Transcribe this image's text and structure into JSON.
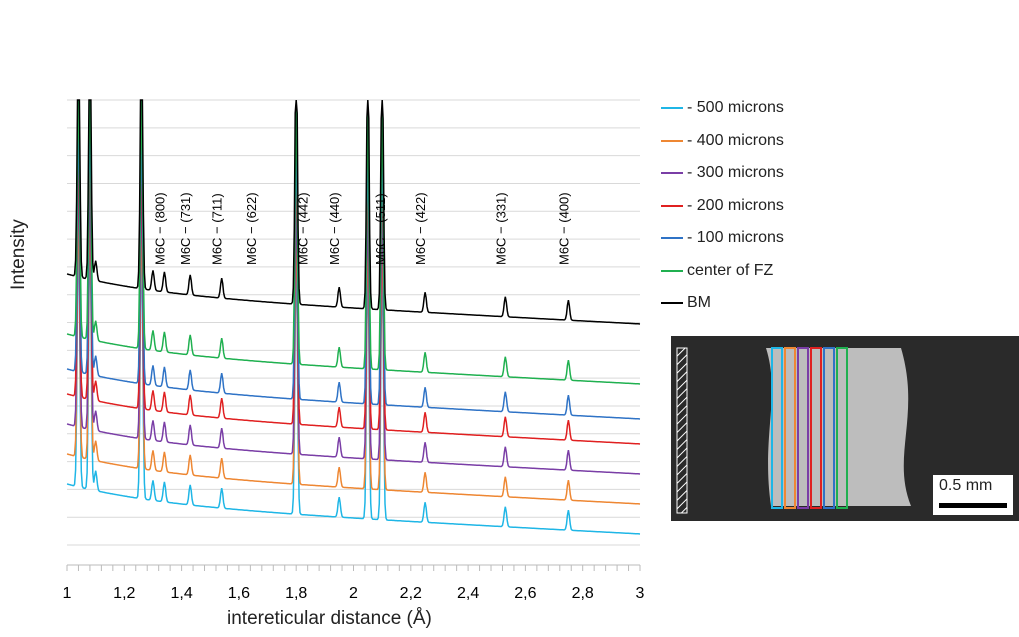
{
  "chart_data": {
    "type": "line",
    "title": "",
    "xlabel": "intereticular distance (Å)",
    "ylabel": "Intensity",
    "xlim": [
      1,
      3
    ],
    "x_ticks": [
      "1",
      "1,2",
      "1,4",
      "1,6",
      "1,8",
      "2",
      "2,2",
      "2,4",
      "2,6",
      "2,8",
      "3"
    ],
    "grid": true,
    "legend_position": "right",
    "series": [
      {
        "name": "- 500 microns",
        "color": "#1fb6e6"
      },
      {
        "name": "- 400 microns",
        "color": "#ee8733"
      },
      {
        "name": "- 300 microns",
        "color": "#7a3ea6"
      },
      {
        "name": "- 200 microns",
        "color": "#e02020"
      },
      {
        "name": "- 100 microns",
        "color": "#2f73c6"
      },
      {
        "name": "center of FZ",
        "color": "#20b050"
      },
      {
        "name": "BM",
        "color": "#000000"
      }
    ],
    "annotations": [
      {
        "text": "M6C − (800)",
        "x": 1.34
      },
      {
        "text": "M6C − (731)",
        "x": 1.43
      },
      {
        "text": "M6C − (711)",
        "x": 1.54
      },
      {
        "text": "M6C − (622)",
        "x": 1.66
      },
      {
        "text": "M6C − (442)",
        "x": 1.84
      },
      {
        "text": "M6C − (440)",
        "x": 1.95
      },
      {
        "text": "M6C − (511)",
        "x": 2.11
      },
      {
        "text": "M6C − (422)",
        "x": 2.25
      },
      {
        "text": "M6C − (331)",
        "x": 2.53
      },
      {
        "text": "M6C − (400)",
        "x": 2.75
      }
    ]
  },
  "legend": {
    "items": [
      {
        "label": "- 500 microns",
        "color": "#1fb6e6"
      },
      {
        "label": "- 400 microns",
        "color": "#ee8733"
      },
      {
        "label": "- 300 microns",
        "color": "#7a3ea6"
      },
      {
        "label": "- 200 microns",
        "color": "#e02020"
      },
      {
        "label": "- 100 microns",
        "color": "#2f73c6"
      },
      {
        "label": "center of FZ",
        "color": "#20b050"
      },
      {
        "label": "BM",
        "color": "#000000"
      }
    ]
  },
  "micrograph": {
    "scale_label": "0.5 mm"
  }
}
